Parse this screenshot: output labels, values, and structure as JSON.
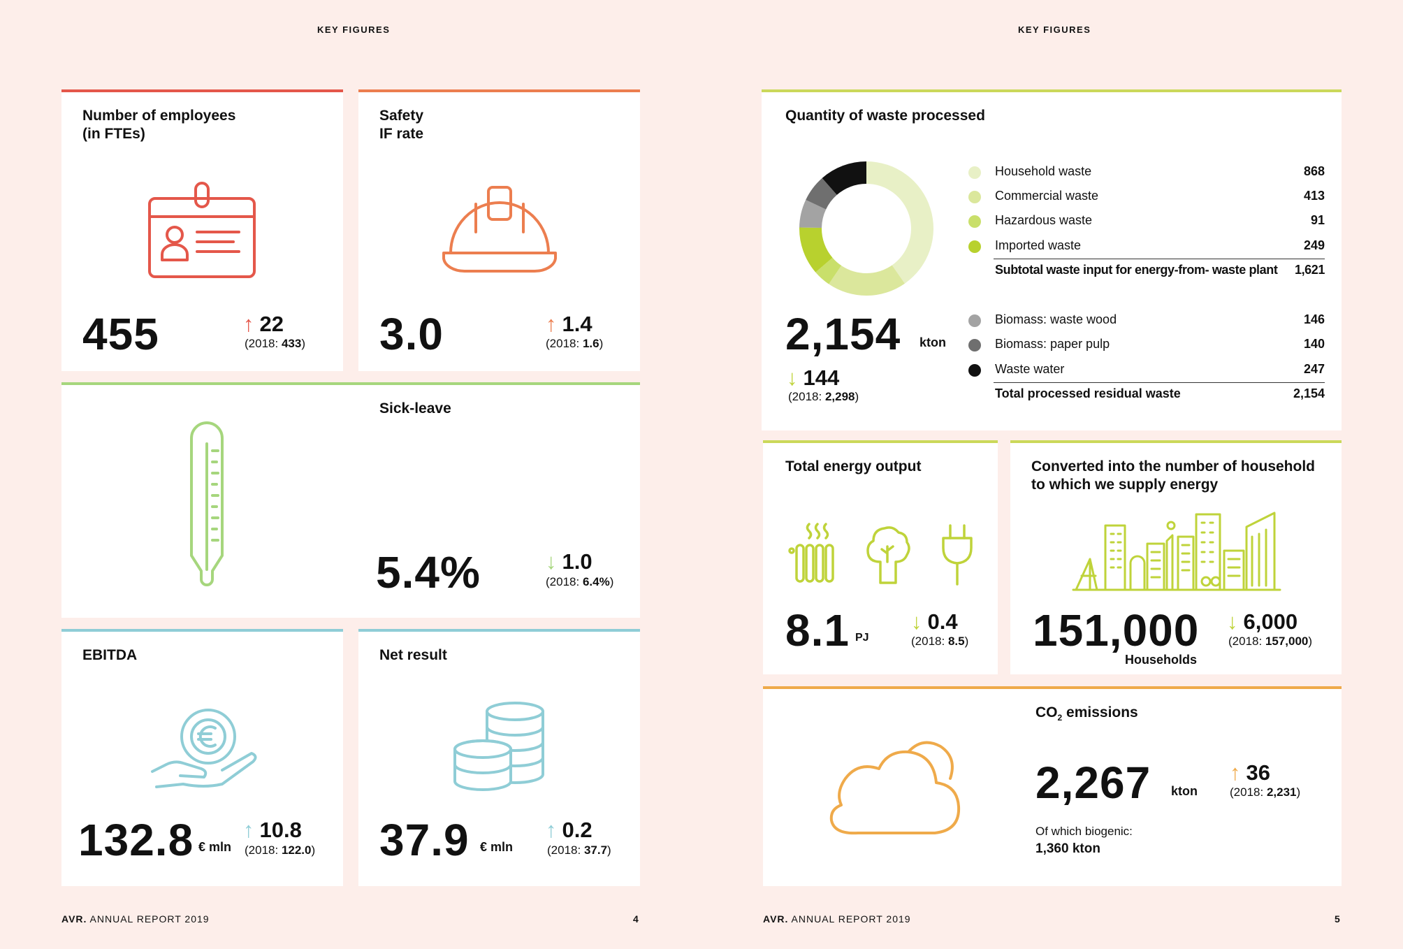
{
  "header": {
    "left": "KEY FIGURES",
    "right": "KEY FIGURES"
  },
  "employees": {
    "title_1": "Number of employees",
    "title_2": "(in FTEs)",
    "value": "455",
    "delta": "22",
    "prev_label": "(2018: ",
    "prev_value": "433",
    "prev_close": ")"
  },
  "safety": {
    "title_1": "Safety",
    "title_2": "IF rate",
    "value": "3.0",
    "delta": "1.4",
    "prev_label": "(2018: ",
    "prev_value": "1.6",
    "prev_close": ")"
  },
  "sickleave": {
    "title": "Sick-leave",
    "value": "5.4%",
    "delta": "1.0",
    "prev_label": "(2018: ",
    "prev_value": "6.4%",
    "prev_close": ")"
  },
  "ebitda": {
    "title": "EBITDA",
    "value": "132.8",
    "unit": "€ mln",
    "delta": "10.8",
    "prev_label": "(2018: ",
    "prev_value": "122.0",
    "prev_close": ")"
  },
  "netresult": {
    "title": "Net result",
    "value": "37.9",
    "unit": "€ mln",
    "delta": "0.2",
    "prev_label": "(2018: ",
    "prev_value": "37.7",
    "prev_close": ")"
  },
  "waste": {
    "title": "Quantity of waste processed",
    "value": "2,154",
    "unit": "kton",
    "delta": "144",
    "prev_label": "(2018: ",
    "prev_value": "2,298",
    "prev_close": ")",
    "subtotal_label": "Subtotal waste input for energy-from- waste plant",
    "subtotal_value": "1,621",
    "total_label": "Total processed residual waste",
    "total_value": "2,154"
  },
  "chart_data": {
    "type": "pie",
    "title": "Quantity of waste processed",
    "categories": [
      "Household waste",
      "Commercial waste",
      "Hazardous waste",
      "Imported waste",
      "Biomass: waste wood",
      "Biomass: paper pulp",
      "Waste water"
    ],
    "values": [
      868,
      413,
      91,
      249,
      146,
      140,
      247
    ],
    "colors": [
      "#e8f0c6",
      "#dbe79c",
      "#c9df6a",
      "#b8d12e",
      "#a3a3a3",
      "#6f6f6f",
      "#111111"
    ],
    "labels": [
      "Household waste",
      "Commercial waste",
      "Hazardous waste",
      "Imported waste",
      "Biomass: waste wood",
      "Biomass: paper pulp",
      "Waste water"
    ],
    "value_labels": [
      "868",
      "413",
      "91",
      "249",
      "146",
      "140",
      "247"
    ],
    "donut": true
  },
  "energy": {
    "title": "Total energy output",
    "value": "8.1",
    "unit": "PJ",
    "delta": "0.4",
    "prev_label": "(2018: ",
    "prev_value": "8.5",
    "prev_close": ")"
  },
  "households": {
    "title_1": "Converted into the number of household",
    "title_2": "to which we supply energy",
    "value": "151,000",
    "unit": "Households",
    "delta": "6,000",
    "prev_label": "(2018: ",
    "prev_value": "157,000",
    "prev_close": ")"
  },
  "co2": {
    "title_main": "CO",
    "title_sub": "2",
    "title_rest": " emissions",
    "value": "2,267",
    "unit": "kton",
    "delta": "36",
    "prev_label": "(2018: ",
    "prev_value": "2,231",
    "prev_close": ")",
    "note_1": "Of which biogenic:",
    "note_2": "1,360 kton"
  },
  "footer": {
    "left_brand": "AVR.",
    "left_text": " ANNUAL REPORT 2019",
    "left_page": "4",
    "right_brand": "AVR.",
    "right_text": " ANNUAL REPORT 2019",
    "right_page": "5"
  },
  "arrows": {
    "up": "↑",
    "down": "↓"
  },
  "colors": {
    "red": "#e4574a",
    "orange": "#ec7e4f",
    "green": "#a6d67d",
    "blue": "#8fcdd6",
    "lime": "#bfd33a",
    "amber": "#efaa4a"
  }
}
